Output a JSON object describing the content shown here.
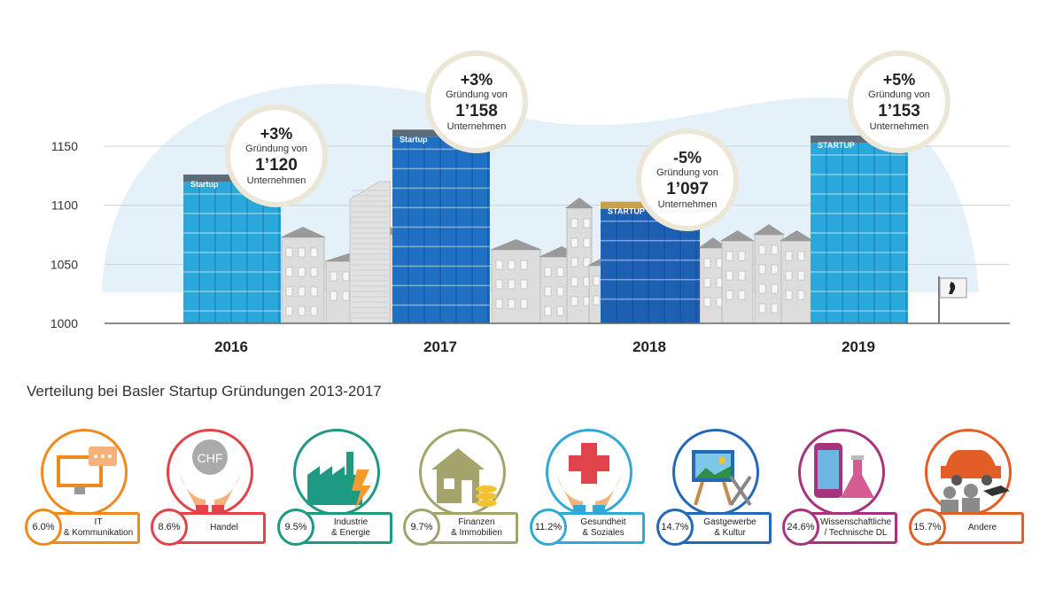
{
  "chart_data": {
    "type": "bar",
    "title": "",
    "categories": [
      "2016",
      "2017",
      "2018",
      "2019"
    ],
    "values": [
      1120,
      1158,
      1097,
      1153
    ],
    "ylim": [
      1000,
      1160
    ],
    "yticks": [
      "1000",
      "1050",
      "1100",
      "1150"
    ],
    "grid": true,
    "bar_colors": [
      "#2aa7db",
      "#1f6fc2",
      "#1d5fb3",
      "#2aa7db"
    ],
    "building_signs": [
      "Startup",
      "Startup",
      "STARTUP",
      "STARTUP"
    ],
    "annotations": [
      {
        "change": "+3%",
        "line1": "Gründung von",
        "value": "1’120",
        "line2": "Unternehmen"
      },
      {
        "change": "+3%",
        "line1": "Gründung von",
        "value": "1’158",
        "line2": "Unternehmen"
      },
      {
        "change": "-5%",
        "line1": "Gründung von",
        "value": "1’097",
        "line2": "Unternehmen"
      },
      {
        "change": "+5%",
        "line1": "Gründung von",
        "value": "1’153",
        "line2": "Unternehmen"
      }
    ]
  },
  "distribution": {
    "title": "Verteilung bei Basler Startup Gründungen 2013-2017",
    "items": [
      {
        "share": "6.0%",
        "label": "IT\n& Kommunikation",
        "color": "#f08a1c",
        "icon": "monitor-icon"
      },
      {
        "share": "8.6%",
        "label": "Handel",
        "color": "#e2434b",
        "icon": "chf-coin-hands-icon"
      },
      {
        "share": "9.5%",
        "label": "Industrie\n& Energie",
        "color": "#1f9a82",
        "icon": "factory-icon"
      },
      {
        "share": "9.7%",
        "label": "Finanzen\n& Immobilien",
        "color": "#a3a36b",
        "icon": "house-coins-icon"
      },
      {
        "share": "11.2%",
        "label": "Gesundheit\n& Soziales",
        "color": "#31a9d6",
        "icon": "cross-hands-icon"
      },
      {
        "share": "14.7%",
        "label": "Gastgewerbe\n& Kultur",
        "color": "#2369b8",
        "icon": "easel-cutlery-icon"
      },
      {
        "share": "24.6%",
        "label": "Wissenschaftliche\n/ Technische DL",
        "color": "#a7337f",
        "icon": "phone-flask-icon"
      },
      {
        "share": "15.7%",
        "label": "Andere",
        "color": "#e35d27",
        "icon": "car-people-icon"
      }
    ]
  }
}
